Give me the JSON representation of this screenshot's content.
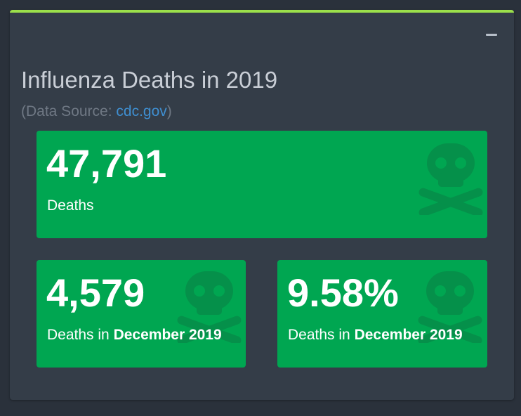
{
  "widget": {
    "title": "Influenza Deaths in 2019",
    "source_prefix": "(Data Source: ",
    "source_link": "cdc.gov",
    "source_suffix": ")",
    "accent_color": "#9be04b",
    "tile_color": "#00a651",
    "collapse_icon": "minus-icon"
  },
  "tiles": [
    {
      "value": "47,791",
      "label_prefix": "Deaths",
      "label_bold": "",
      "icon": "skull-crossbones-icon"
    },
    {
      "value": "4,579",
      "label_prefix": "Deaths in ",
      "label_bold": "December 2019",
      "icon": "skull-crossbones-icon"
    },
    {
      "value": "9.58%",
      "label_prefix": "Deaths in ",
      "label_bold": "December 2019",
      "icon": "skull-crossbones-icon"
    }
  ]
}
